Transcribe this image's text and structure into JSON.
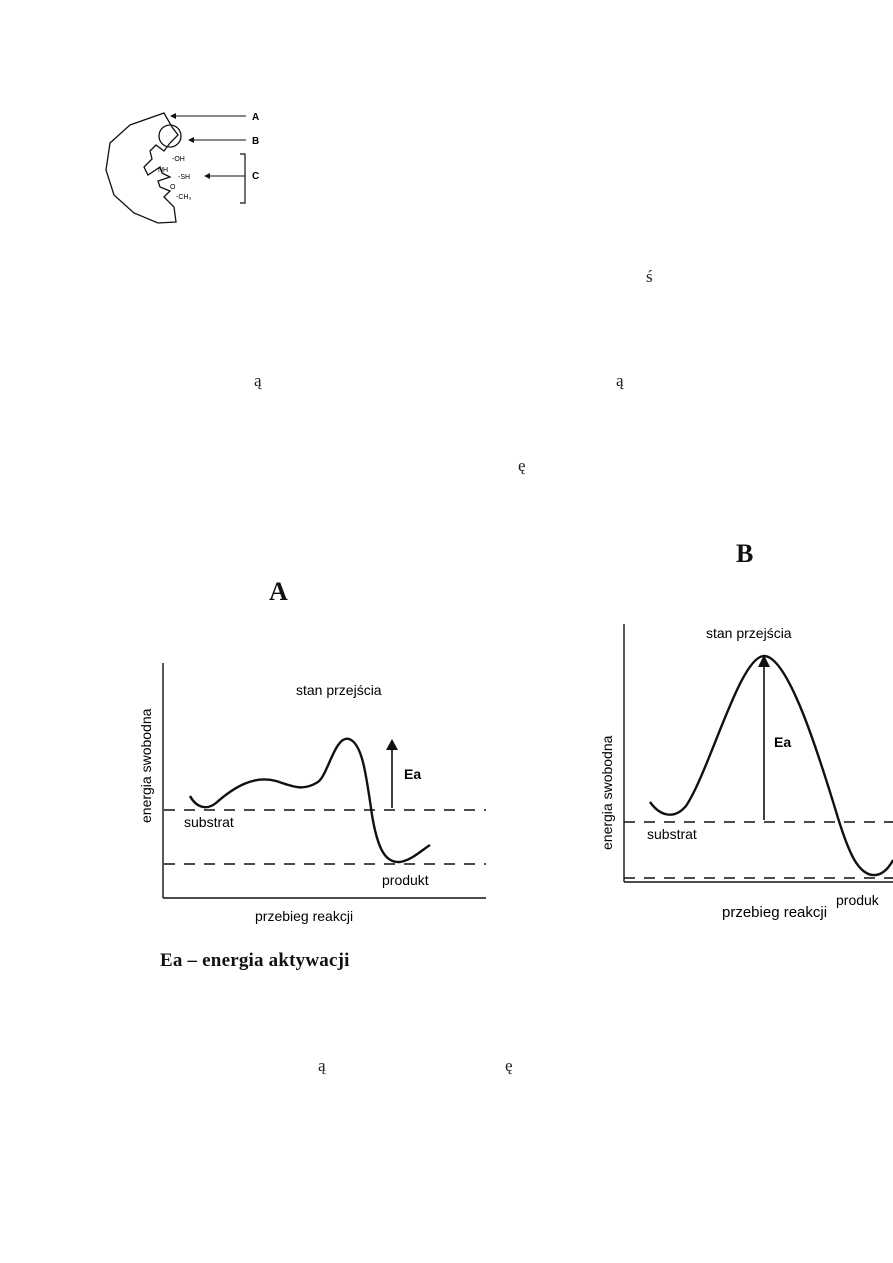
{
  "enzyme_diagram": {
    "labels": [
      "A",
      "B",
      "C"
    ],
    "groups": [
      "-OH",
      "NH",
      "-SH",
      "O",
      "-CH₃"
    ]
  },
  "stray_glyphs": [
    "ś",
    "ą",
    "ą",
    "ę",
    "ą",
    "ę"
  ],
  "panel_a": {
    "letter": "A",
    "ylabel": "energia swobodna",
    "xlabel": "przebieg reakcji",
    "transition_label": "stan przejścia",
    "ea_label": "Ea",
    "substrate_label": "substrat",
    "product_label": "produkt"
  },
  "panel_b": {
    "letter": "B",
    "ylabel": "energia swobodna",
    "xlabel": "przebieg reakcji",
    "transition_label": "stan przejścia",
    "ea_label": "Ea",
    "substrate_label": "substrat",
    "product_label": "produk"
  },
  "caption": "Ea – energia aktywacji",
  "colors": {
    "ink": "#111111",
    "background": "#ffffff"
  }
}
